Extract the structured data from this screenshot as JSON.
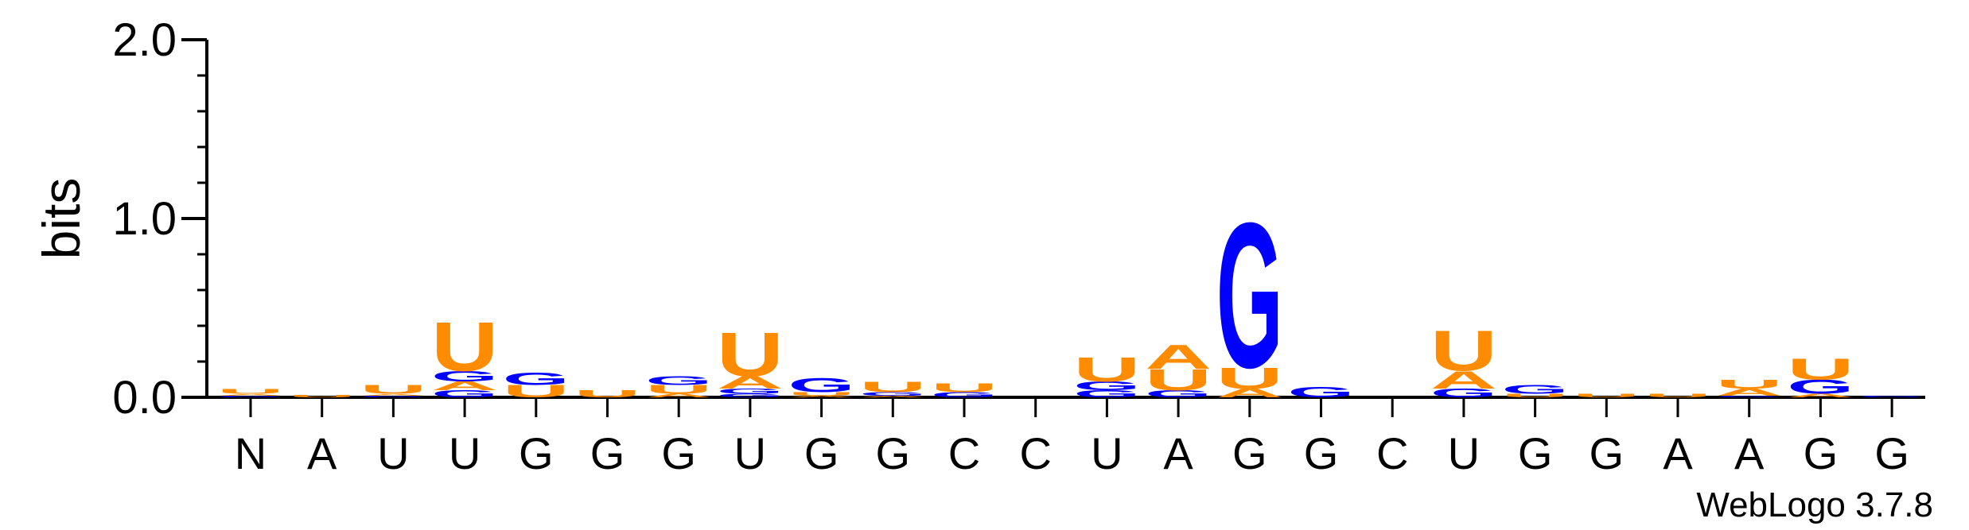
{
  "chart_data": {
    "type": "sequence-logo",
    "ylabel": "bits",
    "ylim": [
      0,
      2.0
    ],
    "yticks": [
      "0.0",
      "1.0",
      "2.0"
    ],
    "ytick_values": [
      0,
      1.0,
      2.0
    ],
    "credit": "WebLogo 3.7.8",
    "colors": {
      "U": "#FF8C00",
      "A": "#FF8C00",
      "G": "#0000FF",
      "C": "#0000FF"
    },
    "positions": [
      {
        "label": "N",
        "stack": [
          {
            "letter": "G",
            "bits": 0.01
          },
          {
            "letter": "A",
            "bits": 0.01
          },
          {
            "letter": "U",
            "bits": 0.025
          }
        ]
      },
      {
        "label": "A",
        "stack": [
          {
            "letter": "U",
            "bits": 0.015
          }
        ]
      },
      {
        "label": "U",
        "stack": [
          {
            "letter": "G",
            "bits": 0.01
          },
          {
            "letter": "A",
            "bits": 0.01
          },
          {
            "letter": "U",
            "bits": 0.05
          }
        ]
      },
      {
        "label": "U",
        "stack": [
          {
            "letter": "G",
            "bits": 0.04
          },
          {
            "letter": "A",
            "bits": 0.05
          },
          {
            "letter": "G",
            "bits": 0.06
          },
          {
            "letter": "U",
            "bits": 0.28
          }
        ]
      },
      {
        "label": "G",
        "stack": [
          {
            "letter": "U",
            "bits": 0.07
          },
          {
            "letter": "G",
            "bits": 0.07
          }
        ]
      },
      {
        "label": "G",
        "stack": [
          {
            "letter": "U",
            "bits": 0.04
          }
        ]
      },
      {
        "label": "G",
        "stack": [
          {
            "letter": "A",
            "bits": 0.02
          },
          {
            "letter": "U",
            "bits": 0.05
          },
          {
            "letter": "G",
            "bits": 0.05
          }
        ]
      },
      {
        "label": "U",
        "stack": [
          {
            "letter": "G",
            "bits": 0.02
          },
          {
            "letter": "G",
            "bits": 0.03
          },
          {
            "letter": "A",
            "bits": 0.07
          },
          {
            "letter": "U",
            "bits": 0.25
          }
        ]
      },
      {
        "label": "G",
        "stack": [
          {
            "letter": "A",
            "bits": 0.01
          },
          {
            "letter": "U",
            "bits": 0.02
          },
          {
            "letter": "G",
            "bits": 0.08
          }
        ]
      },
      {
        "label": "G",
        "stack": [
          {
            "letter": "A",
            "bits": 0.01
          },
          {
            "letter": "G",
            "bits": 0.02
          },
          {
            "letter": "U",
            "bits": 0.06
          }
        ]
      },
      {
        "label": "C",
        "stack": [
          {
            "letter": "G",
            "bits": 0.03
          },
          {
            "letter": "U",
            "bits": 0.05
          }
        ]
      },
      {
        "label": "C",
        "stack": []
      },
      {
        "label": "U",
        "stack": [
          {
            "letter": "G",
            "bits": 0.04
          },
          {
            "letter": "G",
            "bits": 0.05
          },
          {
            "letter": "U",
            "bits": 0.14
          }
        ]
      },
      {
        "label": "A",
        "stack": [
          {
            "letter": "G",
            "bits": 0.04
          },
          {
            "letter": "U",
            "bits": 0.12
          },
          {
            "letter": "A",
            "bits": 0.14
          }
        ]
      },
      {
        "label": "G",
        "stack": [
          {
            "letter": "A",
            "bits": 0.05
          },
          {
            "letter": "U",
            "bits": 0.12
          },
          {
            "letter": "G",
            "bits": 0.83
          }
        ]
      },
      {
        "label": "G",
        "stack": [
          {
            "letter": "G",
            "bits": 0.06
          }
        ]
      },
      {
        "label": "C",
        "stack": []
      },
      {
        "label": "U",
        "stack": [
          {
            "letter": "G",
            "bits": 0.05
          },
          {
            "letter": "A",
            "bits": 0.1
          },
          {
            "letter": "U",
            "bits": 0.23
          }
        ]
      },
      {
        "label": "G",
        "stack": [
          {
            "letter": "U",
            "bits": 0.02
          },
          {
            "letter": "G",
            "bits": 0.05
          }
        ]
      },
      {
        "label": "G",
        "stack": [
          {
            "letter": "U",
            "bits": 0.02
          }
        ]
      },
      {
        "label": "A",
        "stack": [
          {
            "letter": "U",
            "bits": 0.02
          }
        ]
      },
      {
        "label": "A",
        "stack": [
          {
            "letter": "G",
            "bits": 0.01
          },
          {
            "letter": "A",
            "bits": 0.04
          },
          {
            "letter": "U",
            "bits": 0.05
          }
        ]
      },
      {
        "label": "G",
        "stack": [
          {
            "letter": "A",
            "bits": 0.02
          },
          {
            "letter": "G",
            "bits": 0.08
          },
          {
            "letter": "U",
            "bits": 0.12
          }
        ]
      },
      {
        "label": "G",
        "stack": [
          {
            "letter": "G",
            "bits": 0.01
          }
        ]
      }
    ]
  }
}
